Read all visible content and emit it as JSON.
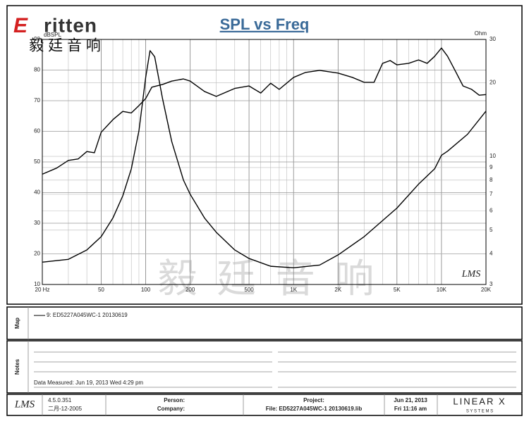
{
  "branding": {
    "initial": "E",
    "name": "ritten",
    "chinese": "毅 廷 音 响",
    "watermark": "毅 廷 音 响"
  },
  "chart_data": {
    "type": "line",
    "title": "SPL vs Freq",
    "y_label": "dBSPL",
    "y2_label": "Ohm",
    "logo": "LMS",
    "xscale": "log",
    "y2scale": "log",
    "grid": true,
    "xlim": [
      20,
      20000
    ],
    "xticks": [
      {
        "value": 20,
        "label": "20 Hz"
      },
      50,
      100,
      200,
      500,
      {
        "value": 1000,
        "label": "1K"
      },
      {
        "value": 2000,
        "label": "2K"
      },
      {
        "value": 5000,
        "label": "5K"
      },
      {
        "value": 10000,
        "label": "10K"
      },
      {
        "value": 20000,
        "label": "20K"
      }
    ],
    "ylim": [
      10,
      90
    ],
    "yticks": [
      10,
      20,
      30,
      40,
      50,
      60,
      70,
      80,
      90
    ],
    "y2lim": [
      3,
      30
    ],
    "y2ticks": [
      3,
      4,
      5,
      6,
      7,
      8,
      9,
      10,
      20,
      30
    ],
    "series": [
      {
        "name": "SPL",
        "color": "#000000",
        "x": [
          20,
          25,
          30,
          35,
          40,
          45,
          50,
          60,
          70,
          80,
          90,
          100,
          110,
          130,
          150,
          180,
          200,
          250,
          300,
          400,
          500,
          600,
          700,
          800,
          1000,
          1200,
          1500,
          2000,
          2500,
          3000,
          3500,
          4000,
          4500,
          5000,
          6000,
          7000,
          8000,
          9000,
          10000,
          11000,
          12500,
          14000,
          16000,
          18000,
          20000
        ],
        "values": [
          46,
          48,
          50.5,
          51,
          53.4,
          53,
          59.7,
          63.8,
          66.5,
          66,
          68.4,
          70.7,
          74.4,
          75.3,
          76.4,
          77.1,
          76.4,
          73,
          71.4,
          74,
          74.8,
          72.5,
          75.7,
          73.7,
          77.6,
          79.2,
          79.9,
          79,
          77.6,
          76,
          76,
          82.2,
          83.1,
          81.7,
          82.2,
          83.3,
          82.2,
          84.5,
          87.2,
          84.5,
          79.4,
          74.8,
          73.7,
          71.8,
          72
        ]
      },
      {
        "name": "Impedance",
        "color": "#000000",
        "axis": "y2",
        "x": [
          20,
          30,
          40,
          50,
          60,
          70,
          80,
          90,
          100,
          107,
          115,
          130,
          150,
          180,
          200,
          250,
          300,
          400,
          500,
          700,
          1000,
          1500,
          2000,
          3000,
          5000,
          7000,
          9000,
          10000,
          11000,
          15000,
          20000
        ],
        "values": [
          3.7,
          3.8,
          4.15,
          4.7,
          5.6,
          6.9,
          8.9,
          12.7,
          21,
          27,
          25.5,
          17.2,
          11.5,
          8.0,
          7.0,
          5.6,
          4.9,
          4.15,
          3.83,
          3.56,
          3.51,
          3.6,
          3.96,
          4.7,
          6.15,
          7.7,
          8.9,
          10.1,
          10.5,
          12.3,
          15.3
        ]
      }
    ]
  },
  "map": {
    "label": "Map",
    "entry": "9: ED5227A045WC-1  20130619"
  },
  "notes": {
    "label": "Notes",
    "measured": "Data Measured: Jun 19, 2013  Wed  4:29 pm"
  },
  "footer": {
    "logo": "LMS",
    "version": "4.5.0.351",
    "build_date": "二月-12-2005",
    "person": "Person:",
    "company": "Company:",
    "project": "Project:",
    "file": "File: ED5227A045WC-1  20130619.lib",
    "date": "Jun 21, 2013",
    "time": "Fri 11:16 am",
    "brand": "LINEAR X",
    "brand_sub": "S Y S T E M S"
  }
}
